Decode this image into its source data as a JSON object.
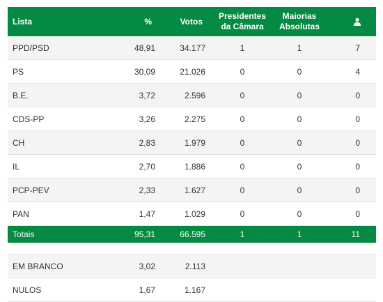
{
  "header": {
    "lista": "Lista",
    "pct": "%",
    "votos": "Votos",
    "presidentes_l1": "Presidentes",
    "presidentes_l2": "da Câmara",
    "maiorias_l1": "Maiorias",
    "maiorias_l2": "Absolutas",
    "seats_icon": "user-icon"
  },
  "rows": [
    {
      "lista": "PPD/PSD",
      "pct": "48,91",
      "votos": "34.177",
      "presidentes": "1",
      "maiorias": "1",
      "seats": "7"
    },
    {
      "lista": "PS",
      "pct": "30,09",
      "votos": "21.026",
      "presidentes": "0",
      "maiorias": "0",
      "seats": "4"
    },
    {
      "lista": "B.E.",
      "pct": "3,72",
      "votos": "2.596",
      "presidentes": "0",
      "maiorias": "0",
      "seats": "0"
    },
    {
      "lista": "CDS-PP",
      "pct": "3,26",
      "votos": "2.275",
      "presidentes": "0",
      "maiorias": "0",
      "seats": "0"
    },
    {
      "lista": "CH",
      "pct": "2,83",
      "votos": "1.979",
      "presidentes": "0",
      "maiorias": "0",
      "seats": "0"
    },
    {
      "lista": "IL",
      "pct": "2,70",
      "votos": "1.886",
      "presidentes": "0",
      "maiorias": "0",
      "seats": "0"
    },
    {
      "lista": "PCP-PEV",
      "pct": "2,33",
      "votos": "1.627",
      "presidentes": "0",
      "maiorias": "0",
      "seats": "0"
    },
    {
      "lista": "PAN",
      "pct": "1,47",
      "votos": "1.029",
      "presidentes": "0",
      "maiorias": "0",
      "seats": "0"
    }
  ],
  "totals": {
    "label": "Totais",
    "pct": "95,31",
    "votos": "66.595",
    "presidentes": "1",
    "maiorias": "1",
    "seats": "11"
  },
  "extra": [
    {
      "lista": "EM BRANCO",
      "pct": "3,02",
      "votos": "2.113"
    },
    {
      "lista": "NULOS",
      "pct": "1,67",
      "votos": "1.167"
    }
  ],
  "colors": {
    "header_bg": "#058a43",
    "row_shade": "#f4f4f4"
  }
}
